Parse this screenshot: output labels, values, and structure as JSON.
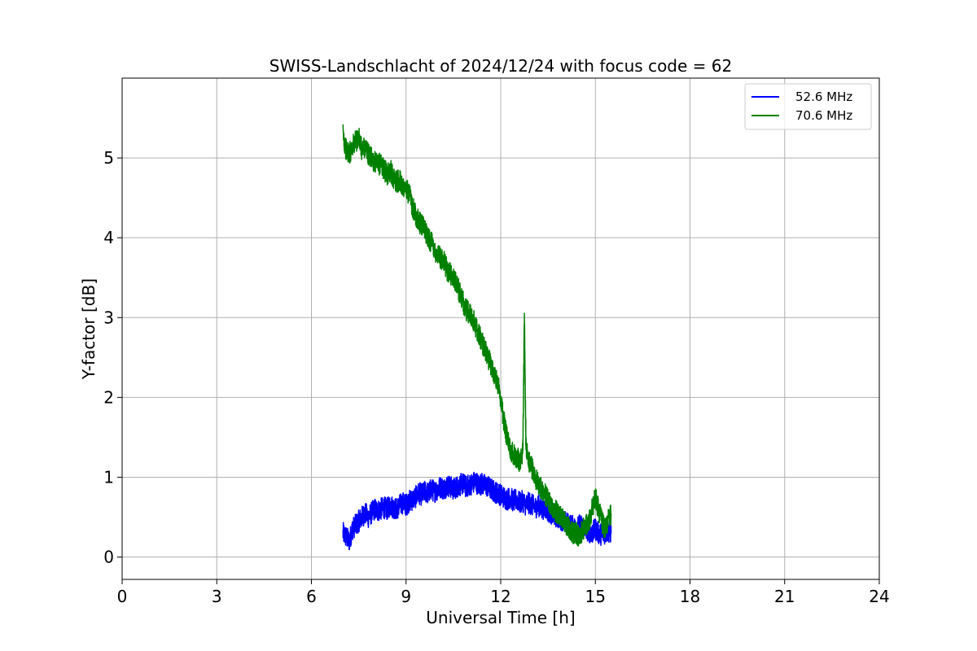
{
  "chart_data": {
    "type": "line",
    "title": "SWISS-Landschlacht of 2024/12/24 with focus code = 62",
    "xlabel": "Universal Time [h]",
    "ylabel": "Y-factor [dB]",
    "xlim": [
      0,
      24
    ],
    "ylim": [
      -0.28,
      6.0
    ],
    "xticks": [
      0,
      3,
      6,
      9,
      12,
      15,
      18,
      21,
      24
    ],
    "yticks": [
      0,
      1,
      2,
      3,
      4,
      5
    ],
    "grid": true,
    "legend_position": "top-right",
    "series": [
      {
        "name": "52.6 MHz",
        "color": "#0000ff",
        "x": [
          7.0,
          7.1,
          7.2,
          7.3,
          7.4,
          7.5,
          7.6,
          7.7,
          7.8,
          7.9,
          8.0,
          8.1,
          8.2,
          8.3,
          8.4,
          8.5,
          8.6,
          8.7,
          8.8,
          8.9,
          9.0,
          9.1,
          9.2,
          9.3,
          9.4,
          9.5,
          9.6,
          9.7,
          9.8,
          9.9,
          10.0,
          10.1,
          10.2,
          10.3,
          10.4,
          10.5,
          10.6,
          10.7,
          10.8,
          10.9,
          11.0,
          11.1,
          11.2,
          11.3,
          11.4,
          11.5,
          11.6,
          11.7,
          11.8,
          11.9,
          12.0,
          12.1,
          12.2,
          12.3,
          12.4,
          12.5,
          12.6,
          12.7,
          12.8,
          12.9,
          13.0,
          13.1,
          13.2,
          13.3,
          13.4,
          13.5,
          13.6,
          13.7,
          13.8,
          13.9,
          14.0,
          14.1,
          14.2,
          14.3,
          14.4,
          14.5,
          14.6,
          14.7,
          14.8,
          14.9,
          15.0,
          15.1,
          15.2,
          15.3,
          15.4,
          15.5
        ],
        "values": [
          0.3,
          0.25,
          0.2,
          0.35,
          0.4,
          0.45,
          0.5,
          0.55,
          0.5,
          0.55,
          0.6,
          0.58,
          0.6,
          0.62,
          0.6,
          0.65,
          0.62,
          0.6,
          0.65,
          0.68,
          0.65,
          0.7,
          0.72,
          0.75,
          0.8,
          0.78,
          0.82,
          0.8,
          0.85,
          0.82,
          0.85,
          0.88,
          0.85,
          0.9,
          0.88,
          0.85,
          0.88,
          0.9,
          0.92,
          0.88,
          0.9,
          0.92,
          0.95,
          0.9,
          0.92,
          0.9,
          0.88,
          0.85,
          0.82,
          0.8,
          0.78,
          0.75,
          0.72,
          0.75,
          0.7,
          0.72,
          0.68,
          0.7,
          0.65,
          0.68,
          0.65,
          0.62,
          0.65,
          0.6,
          0.62,
          0.58,
          0.55,
          0.52,
          0.5,
          0.48,
          0.45,
          0.42,
          0.4,
          0.38,
          0.35,
          0.4,
          0.38,
          0.35,
          0.32,
          0.3,
          0.35,
          0.3,
          0.28,
          0.3,
          0.32,
          0.3
        ]
      },
      {
        "name": "70.6 MHz",
        "color": "#008000",
        "x": [
          7.0,
          7.1,
          7.2,
          7.3,
          7.4,
          7.5,
          7.6,
          7.7,
          7.8,
          7.9,
          8.0,
          8.1,
          8.2,
          8.3,
          8.4,
          8.5,
          8.6,
          8.7,
          8.8,
          8.9,
          9.0,
          9.1,
          9.2,
          9.3,
          9.4,
          9.5,
          9.6,
          9.7,
          9.8,
          9.9,
          10.0,
          10.1,
          10.2,
          10.3,
          10.4,
          10.5,
          10.6,
          10.7,
          10.8,
          10.9,
          11.0,
          11.1,
          11.2,
          11.3,
          11.4,
          11.5,
          11.6,
          11.7,
          11.8,
          11.9,
          12.0,
          12.1,
          12.2,
          12.3,
          12.4,
          12.5,
          12.6,
          12.7,
          12.75,
          12.8,
          12.9,
          13.0,
          13.1,
          13.2,
          13.3,
          13.4,
          13.5,
          13.6,
          13.7,
          13.8,
          13.9,
          14.0,
          14.1,
          14.2,
          14.3,
          14.4,
          14.5,
          14.6,
          14.7,
          14.8,
          14.9,
          15.0,
          15.1,
          15.2,
          15.3,
          15.4,
          15.5
        ],
        "values": [
          5.3,
          5.1,
          5.05,
          5.15,
          5.2,
          5.25,
          5.1,
          5.15,
          5.05,
          5.0,
          4.95,
          4.9,
          4.95,
          4.85,
          4.8,
          4.85,
          4.75,
          4.7,
          4.72,
          4.65,
          4.6,
          4.55,
          4.4,
          4.3,
          4.2,
          4.15,
          4.1,
          4.0,
          3.95,
          3.85,
          3.8,
          3.75,
          3.7,
          3.6,
          3.55,
          3.5,
          3.45,
          3.3,
          3.2,
          3.1,
          3.05,
          3.0,
          2.9,
          2.8,
          2.7,
          2.6,
          2.5,
          2.4,
          2.3,
          2.2,
          2.0,
          1.7,
          1.5,
          1.35,
          1.3,
          1.25,
          1.2,
          1.3,
          3.0,
          1.4,
          1.2,
          1.1,
          1.0,
          0.9,
          0.85,
          0.8,
          0.7,
          0.65,
          0.6,
          0.55,
          0.5,
          0.45,
          0.4,
          0.35,
          0.3,
          0.3,
          0.25,
          0.35,
          0.4,
          0.45,
          0.6,
          0.75,
          0.6,
          0.45,
          0.35,
          0.45,
          0.55
        ]
      }
    ]
  }
}
